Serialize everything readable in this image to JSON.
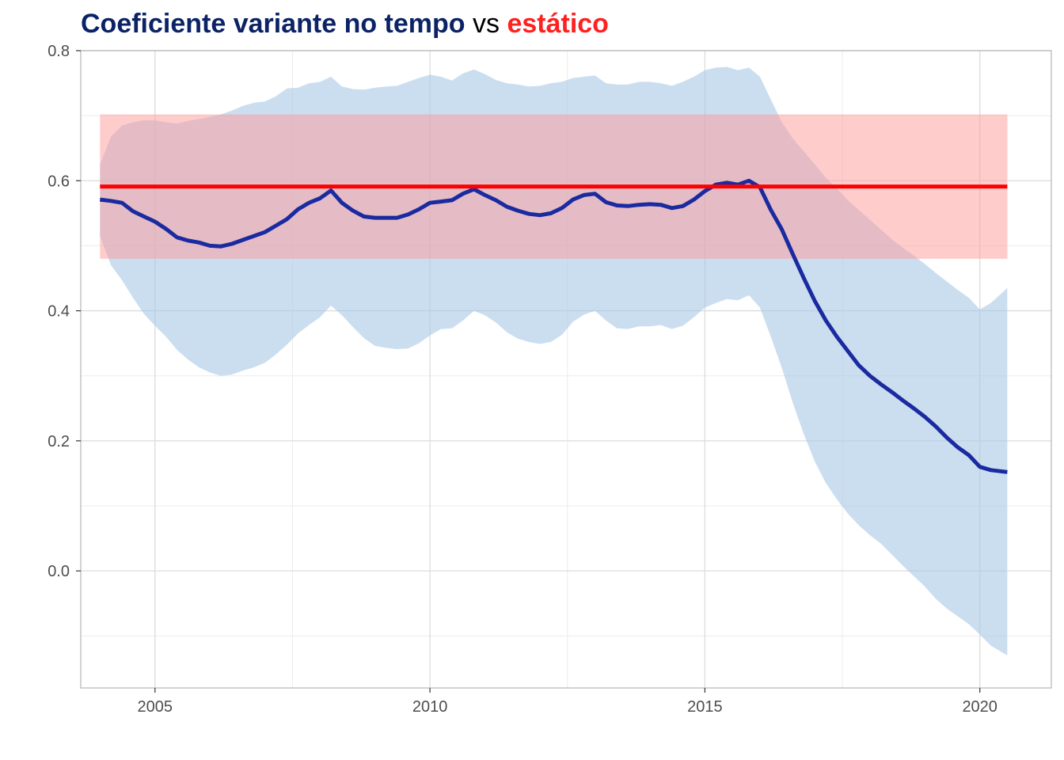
{
  "title": {
    "part1": "Coeficiente variante no tempo",
    "part2": " vs ",
    "part3": "estático",
    "color1": "#0b2366",
    "color3": "#ff2020"
  },
  "chart_data": {
    "type": "line",
    "xlim": [
      2003.65,
      2021.3
    ],
    "ylim": [
      -0.18,
      0.8
    ],
    "x_ticks": [
      2005,
      2010,
      2015,
      2020
    ],
    "x_tick_labels": [
      "2005",
      "2010",
      "2015",
      "2020"
    ],
    "y_ticks": [
      0.0,
      0.2,
      0.4,
      0.6,
      0.8
    ],
    "y_tick_labels": [
      "0.0",
      "0.2",
      "0.4",
      "0.6",
      "0.8"
    ],
    "grid": true,
    "xlabel": "",
    "ylabel": "",
    "static_coefficient": {
      "value": 0.591,
      "lower": 0.48,
      "upper": 0.702,
      "x_start": 2004.0,
      "x_end": 2020.5,
      "line_color": "#ff0000",
      "band_color": "#ff9999"
    },
    "time_varying": {
      "line_color": "#1a2aa0",
      "band_color": "#a8c8e6",
      "x": [
        2004.0,
        2004.2,
        2004.4,
        2004.6,
        2004.8,
        2005.0,
        2005.2,
        2005.4,
        2005.6,
        2005.8,
        2006.0,
        2006.2,
        2006.4,
        2006.6,
        2006.8,
        2007.0,
        2007.2,
        2007.4,
        2007.6,
        2007.8,
        2008.0,
        2008.2,
        2008.4,
        2008.6,
        2008.8,
        2009.0,
        2009.2,
        2009.4,
        2009.6,
        2009.8,
        2010.0,
        2010.2,
        2010.4,
        2010.6,
        2010.8,
        2011.0,
        2011.2,
        2011.4,
        2011.6,
        2011.8,
        2012.0,
        2012.2,
        2012.4,
        2012.6,
        2012.8,
        2013.0,
        2013.2,
        2013.4,
        2013.6,
        2013.8,
        2014.0,
        2014.2,
        2014.4,
        2014.6,
        2014.8,
        2015.0,
        2015.2,
        2015.4,
        2015.6,
        2015.8,
        2016.0,
        2016.2,
        2016.4,
        2016.6,
        2016.8,
        2017.0,
        2017.2,
        2017.4,
        2017.6,
        2017.8,
        2018.0,
        2018.2,
        2018.4,
        2018.6,
        2018.8,
        2019.0,
        2019.2,
        2019.4,
        2019.6,
        2019.8,
        2020.0,
        2020.2,
        2020.5
      ],
      "y": [
        0.571,
        0.569,
        0.566,
        0.553,
        0.545,
        0.537,
        0.526,
        0.513,
        0.508,
        0.505,
        0.5,
        0.499,
        0.503,
        0.509,
        0.515,
        0.521,
        0.531,
        0.541,
        0.556,
        0.566,
        0.573,
        0.585,
        0.566,
        0.554,
        0.545,
        0.543,
        0.543,
        0.543,
        0.548,
        0.556,
        0.566,
        0.568,
        0.57,
        0.58,
        0.587,
        0.578,
        0.57,
        0.56,
        0.554,
        0.549,
        0.547,
        0.55,
        0.558,
        0.571,
        0.578,
        0.58,
        0.567,
        0.562,
        0.561,
        0.563,
        0.564,
        0.563,
        0.558,
        0.561,
        0.571,
        0.584,
        0.594,
        0.597,
        0.594,
        0.6,
        0.59,
        0.555,
        0.525,
        0.487,
        0.45,
        0.415,
        0.385,
        0.36,
        0.338,
        0.316,
        0.3,
        0.287,
        0.275,
        0.262,
        0.25,
        0.237,
        0.222,
        0.205,
        0.19,
        0.178,
        0.16,
        0.155,
        0.152
      ],
      "upper": [
        0.625,
        0.668,
        0.685,
        0.69,
        0.693,
        0.693,
        0.69,
        0.688,
        0.692,
        0.695,
        0.698,
        0.702,
        0.708,
        0.715,
        0.72,
        0.722,
        0.73,
        0.742,
        0.743,
        0.75,
        0.752,
        0.76,
        0.745,
        0.741,
        0.74,
        0.743,
        0.745,
        0.746,
        0.752,
        0.758,
        0.763,
        0.76,
        0.754,
        0.765,
        0.771,
        0.764,
        0.755,
        0.75,
        0.748,
        0.745,
        0.746,
        0.75,
        0.752,
        0.758,
        0.76,
        0.762,
        0.75,
        0.748,
        0.748,
        0.752,
        0.752,
        0.75,
        0.746,
        0.752,
        0.76,
        0.77,
        0.774,
        0.775,
        0.77,
        0.774,
        0.76,
        0.725,
        0.69,
        0.665,
        0.645,
        0.625,
        0.605,
        0.588,
        0.57,
        0.555,
        0.54,
        0.525,
        0.51,
        0.497,
        0.485,
        0.472,
        0.458,
        0.445,
        0.432,
        0.42,
        0.402,
        0.412,
        0.435
      ],
      "lower": [
        0.515,
        0.47,
        0.447,
        0.42,
        0.395,
        0.377,
        0.36,
        0.34,
        0.325,
        0.313,
        0.305,
        0.3,
        0.302,
        0.308,
        0.313,
        0.32,
        0.333,
        0.348,
        0.365,
        0.378,
        0.39,
        0.408,
        0.393,
        0.375,
        0.358,
        0.346,
        0.343,
        0.341,
        0.342,
        0.35,
        0.362,
        0.372,
        0.373,
        0.385,
        0.4,
        0.393,
        0.382,
        0.367,
        0.357,
        0.352,
        0.349,
        0.352,
        0.363,
        0.383,
        0.394,
        0.4,
        0.385,
        0.373,
        0.372,
        0.376,
        0.376,
        0.378,
        0.372,
        0.377,
        0.39,
        0.405,
        0.412,
        0.418,
        0.416,
        0.424,
        0.405,
        0.36,
        0.312,
        0.258,
        0.21,
        0.168,
        0.135,
        0.11,
        0.088,
        0.07,
        0.055,
        0.042,
        0.025,
        0.008,
        -0.008,
        -0.024,
        -0.043,
        -0.058,
        -0.07,
        -0.082,
        -0.098,
        -0.115,
        -0.13
      ]
    }
  }
}
